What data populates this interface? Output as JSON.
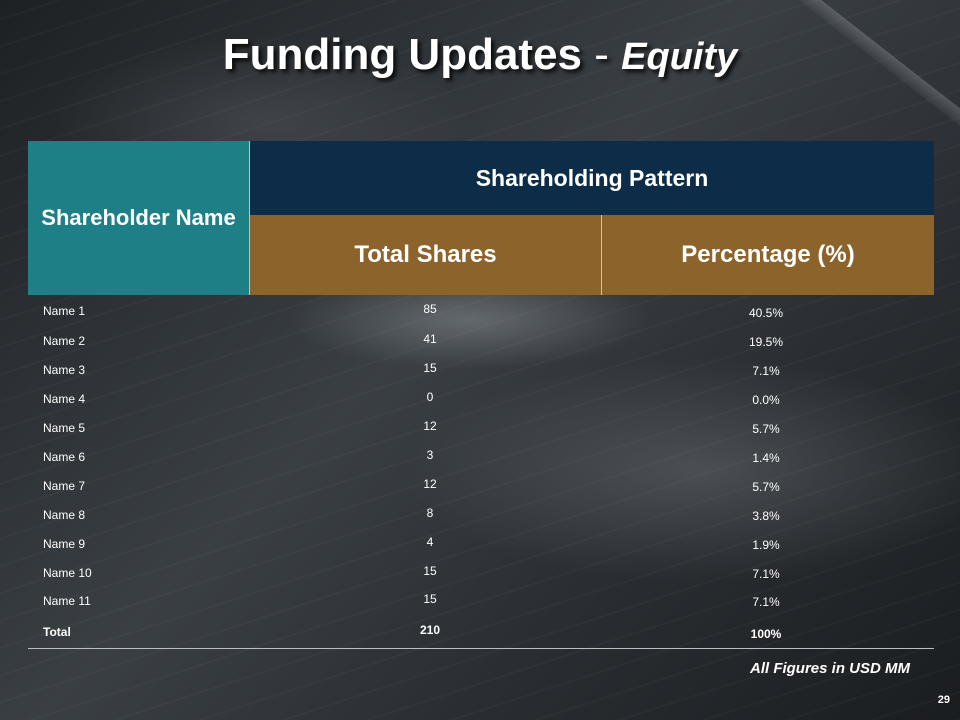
{
  "slide": {
    "title_main": "Funding Updates",
    "title_sep": "-",
    "title_sub": "Equity",
    "page_number": "29",
    "note": "All Figures in USD MM"
  },
  "table": {
    "header_name": "Shareholder Name",
    "header_group": "Shareholding Pattern",
    "header_shares": "Total Shares",
    "header_pct": "Percentage (%)",
    "rows": [
      {
        "name": "Name 1",
        "shares": "85",
        "pct": "40.5%"
      },
      {
        "name": "Name 2",
        "shares": "41",
        "pct": "19.5%"
      },
      {
        "name": "Name 3",
        "shares": "15",
        "pct": "7.1%"
      },
      {
        "name": "Name 4",
        "shares": "0",
        "pct": "0.0%"
      },
      {
        "name": "Name 5",
        "shares": "12",
        "pct": "5.7%"
      },
      {
        "name": "Name 6",
        "shares": "3",
        "pct": "1.4%"
      },
      {
        "name": "Name 7",
        "shares": "12",
        "pct": "5.7%"
      },
      {
        "name": "Name 8",
        "shares": "8",
        "pct": "3.8%"
      },
      {
        "name": "Name 9",
        "shares": "4",
        "pct": "1.9%"
      },
      {
        "name": "Name 10",
        "shares": "15",
        "pct": "7.1%"
      },
      {
        "name": "Name 11",
        "shares": "15",
        "pct": "7.1%"
      }
    ],
    "total": {
      "name": "Total",
      "shares": "210",
      "pct": "100%"
    }
  },
  "colors": {
    "header_teal": "#1e7f86",
    "header_navy": "#0d2c47",
    "header_brown": "#8d632c"
  }
}
